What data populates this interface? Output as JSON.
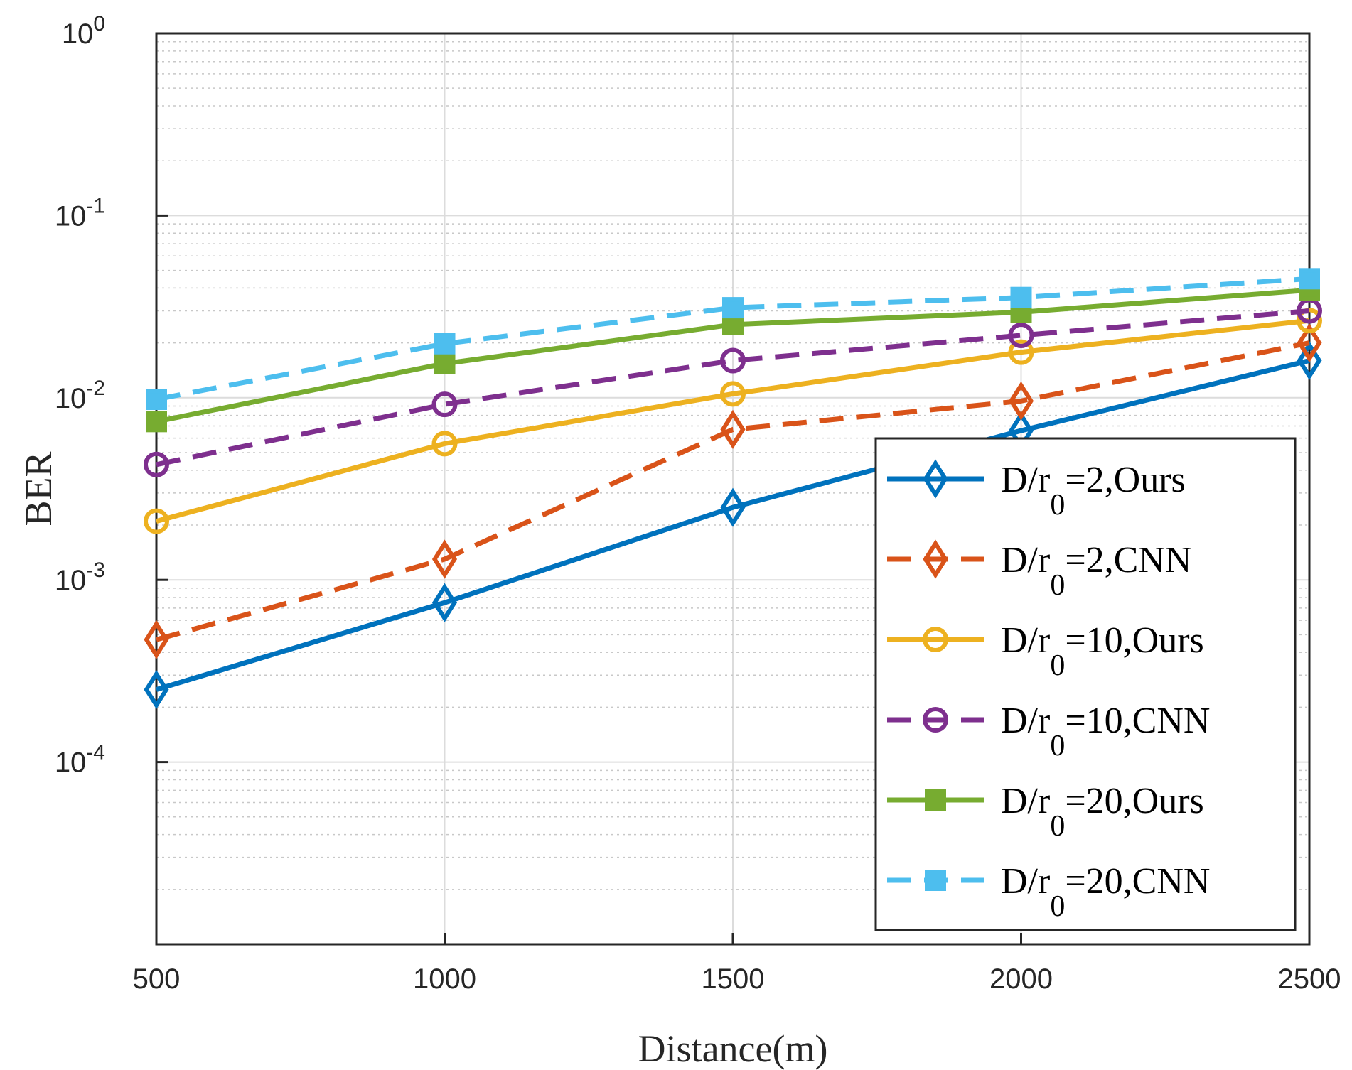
{
  "chart_data": {
    "type": "line",
    "xlabel": "Distance(m)",
    "ylabel": "BER",
    "yscale": "log",
    "xlim": [
      500,
      2500
    ],
    "ylim": [
      1e-05,
      1
    ],
    "x_ticks": [
      "500",
      "1000",
      "1500",
      "2000",
      "2500"
    ],
    "y_ticks": [
      {
        "base": "10",
        "exp": "0",
        "value": 1
      },
      {
        "base": "10",
        "exp": "-1",
        "value": 0.1
      },
      {
        "base": "10",
        "exp": "-2",
        "value": 0.01
      },
      {
        "base": "10",
        "exp": "-3",
        "value": 0.001
      },
      {
        "base": "10",
        "exp": "-4",
        "value": 0.0001
      }
    ],
    "grid": true,
    "legend_position": "bottom-right",
    "x": [
      500,
      1000,
      1500,
      2000,
      2500
    ],
    "series": [
      {
        "label": {
          "pre": "D/r",
          "sub": "0",
          "post": "=2,Ours"
        },
        "color": "#0072BD",
        "style": "solid",
        "marker": "diamond",
        "values": [
          0.00025,
          0.00075,
          0.0025,
          0.0066,
          0.016
        ]
      },
      {
        "label": {
          "pre": "D/r",
          "sub": "0",
          "post": "=2,CNN"
        },
        "color": "#D95319",
        "style": "dashed",
        "marker": "diamond",
        "values": [
          0.00047,
          0.0013,
          0.0067,
          0.0096,
          0.02
        ]
      },
      {
        "label": {
          "pre": "D/r",
          "sub": "0",
          "post": "=10,Ours"
        },
        "color": "#EDB120",
        "style": "solid",
        "marker": "circle",
        "values": [
          0.0021,
          0.0056,
          0.0105,
          0.0178,
          0.0265
        ]
      },
      {
        "label": {
          "pre": "D/r",
          "sub": "0",
          "post": "=10,CNN"
        },
        "color": "#7E2F8E",
        "style": "dashed",
        "marker": "circle",
        "values": [
          0.0043,
          0.0092,
          0.016,
          0.022,
          0.03
        ]
      },
      {
        "label": {
          "pre": "D/r",
          "sub": "0",
          "post": "=20,Ours"
        },
        "color": "#77AC30",
        "style": "solid",
        "marker": "square",
        "values": [
          0.0074,
          0.0154,
          0.0252,
          0.0295,
          0.039
        ]
      },
      {
        "label": {
          "pre": "D/r",
          "sub": "0",
          "post": "=20,CNN"
        },
        "color": "#4DBEEE",
        "style": "dashed",
        "marker": "square",
        "values": [
          0.0098,
          0.0198,
          0.0312,
          0.0355,
          0.045
        ]
      }
    ]
  }
}
